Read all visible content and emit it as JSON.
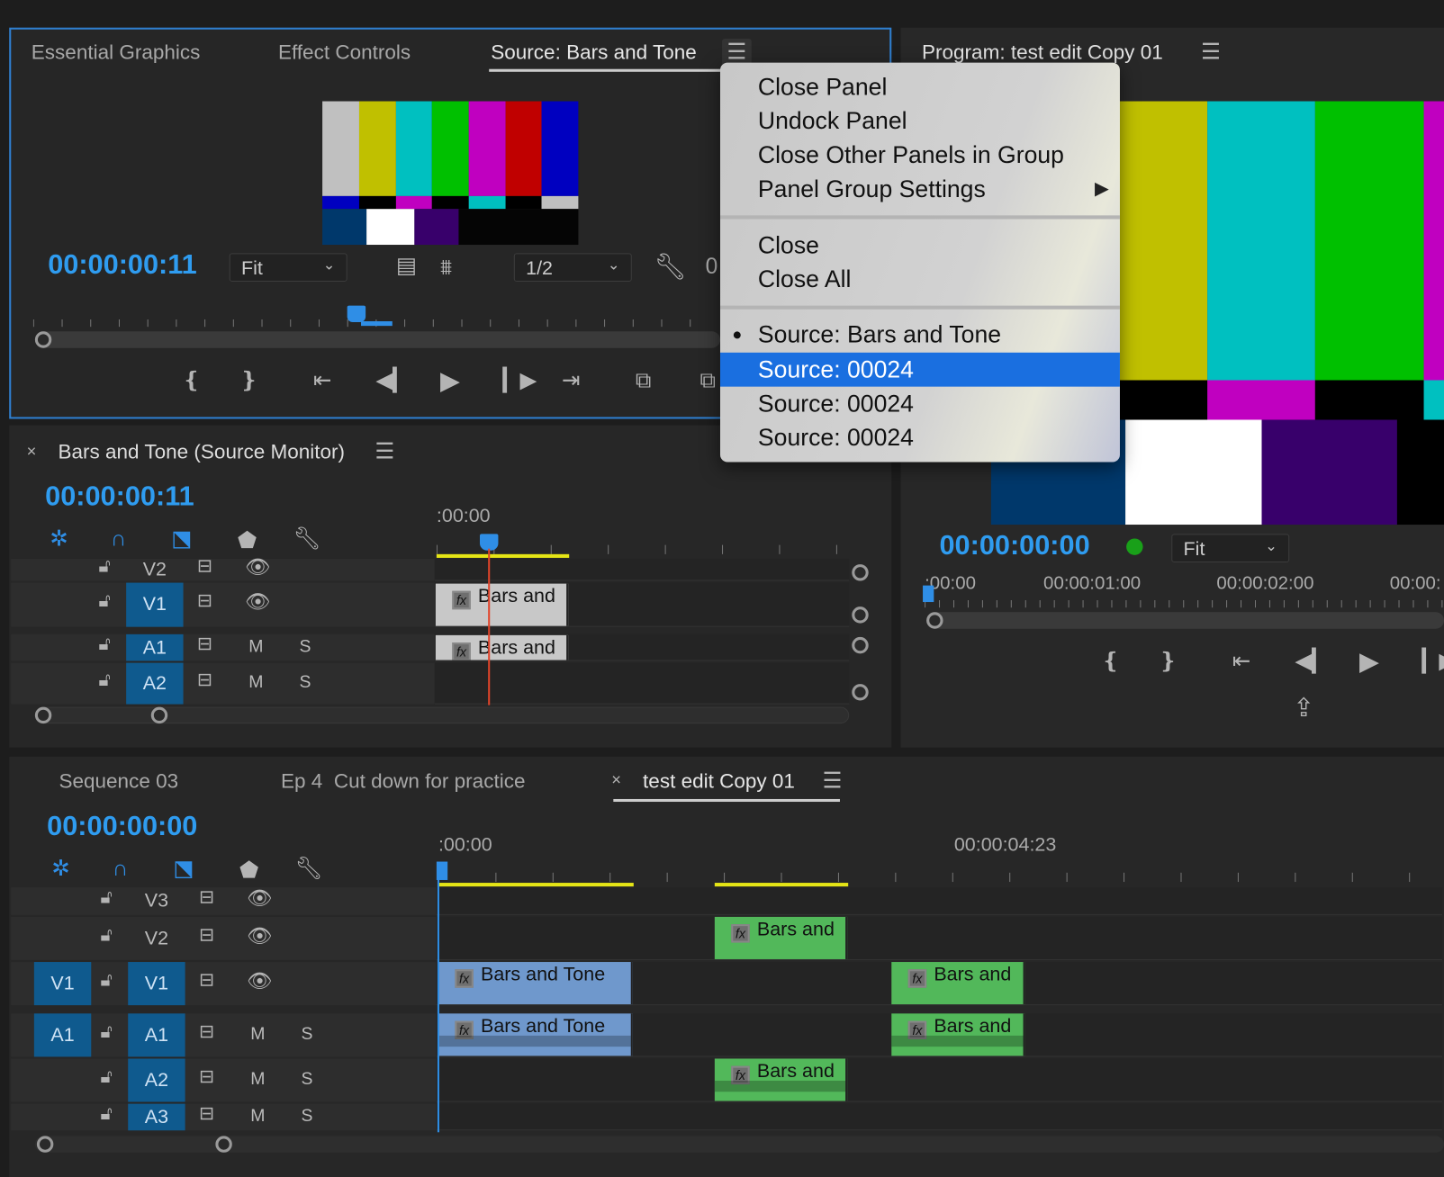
{
  "source_panel": {
    "tabs": [
      "Essential Graphics",
      "Effect Controls",
      "Source: Bars and Tone"
    ],
    "active_tab": "Source: Bars and Tone",
    "timecode": "00:00:00:11",
    "zoom_select": "Fit",
    "resolution_select": "1/2",
    "overflow_text": "0"
  },
  "program_panel": {
    "title": "Program: test edit Copy 01",
    "timecode": "00:00:00:00",
    "zoom_select": "Fit",
    "ruler_labels": [
      ":00:00",
      "00:00:01:00",
      "00:00:02:00",
      "00:00:"
    ]
  },
  "context_menu": {
    "group1": [
      "Close Panel",
      "Undock Panel",
      "Close Other Panels in Group",
      "Panel Group Settings"
    ],
    "group2": [
      "Close",
      "Close All"
    ],
    "group3": [
      "Source: Bars and Tone",
      "Source: 00024",
      "Source: 00024",
      "Source: 00024"
    ],
    "checked_item": "Source: Bars and Tone",
    "highlighted_item": "Source: 00024"
  },
  "source_timeline": {
    "title": "Bars and Tone (Source Monitor)",
    "timecode": "00:00:00:11",
    "ruler_label": ":00:00",
    "tracks": [
      "V2",
      "V1",
      "A1",
      "A2"
    ],
    "mute": "M",
    "solo": "S",
    "clip_label": "Bars and"
  },
  "timeline": {
    "tabs": [
      "Sequence 03",
      "Ep 4  Cut down for practice",
      "test edit Copy 01"
    ],
    "active_tab": "test edit Copy 01",
    "timecode": "00:00:00:00",
    "ruler_labels": [
      ":00:00",
      "00:00:04:23"
    ],
    "source_patch": [
      "V1",
      "A1"
    ],
    "tracks": [
      "V3",
      "V2",
      "V1",
      "A1",
      "A2",
      "A3"
    ],
    "mute": "M",
    "solo": "S",
    "clips": {
      "long": "Bars and Tone",
      "short": "Bars and"
    }
  },
  "fx_badge": "fx",
  "colors": {
    "accent": "#2f9cf0",
    "selected_clip": "#6f98cc",
    "clip_green": "#52b85a",
    "menu_highlight": "#1a6fe0",
    "in_out_bar": "#e5e516"
  }
}
